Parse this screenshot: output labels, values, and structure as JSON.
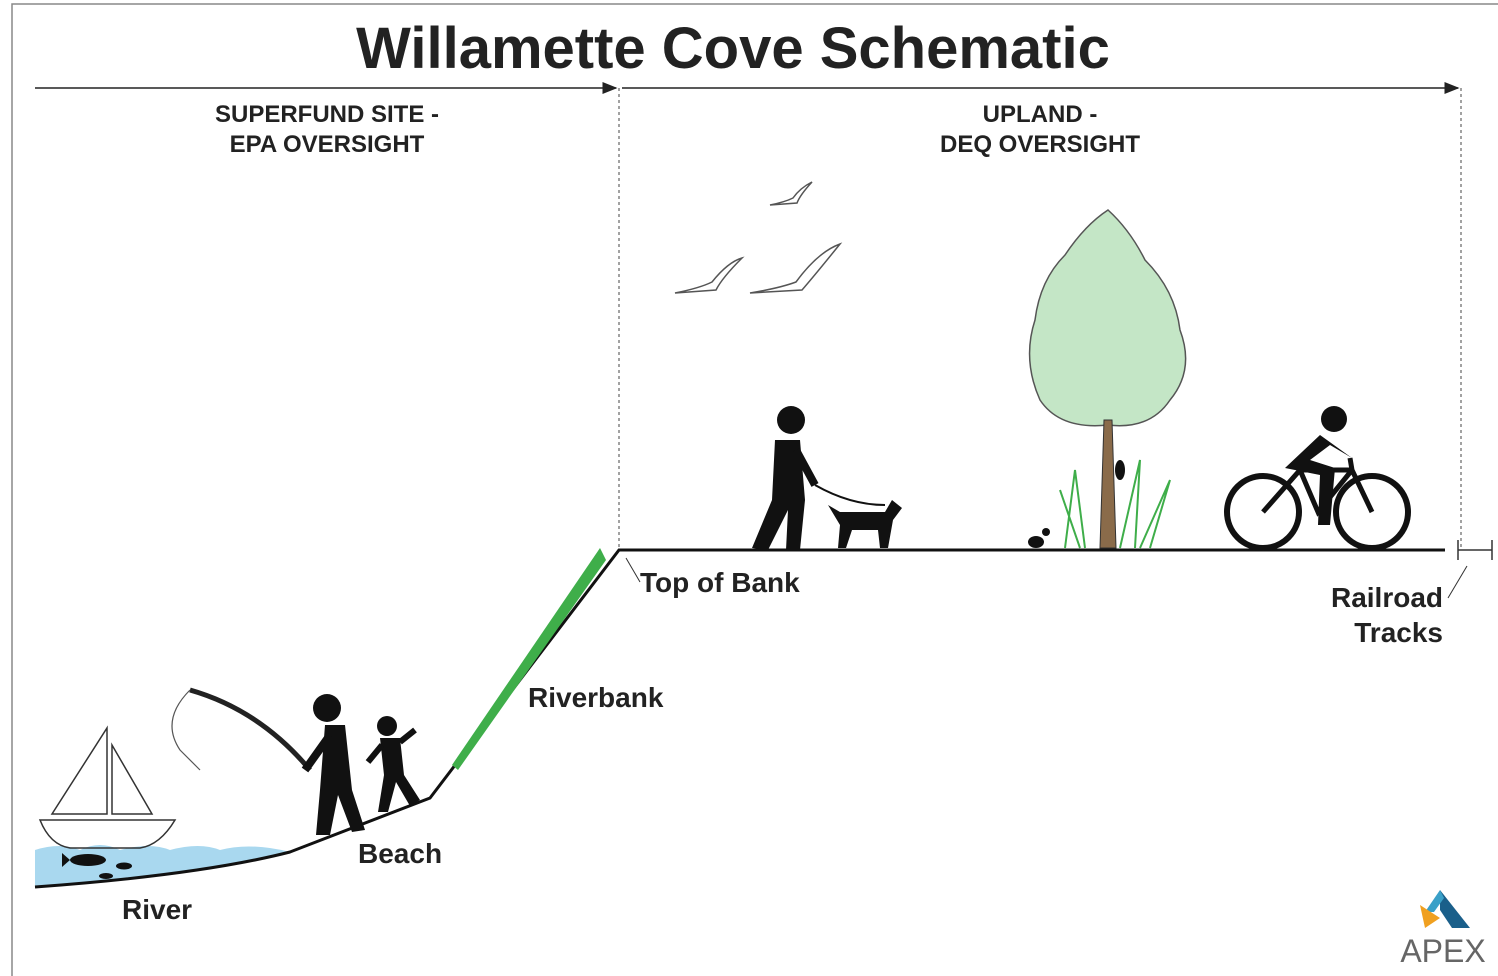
{
  "title": "Willamette Cove Schematic",
  "sections": [
    {
      "label_lines": [
        "SUPERFUND SITE -",
        "EPA OVERSIGHT"
      ]
    },
    {
      "label_lines": [
        "UPLAND -",
        "DEQ OVERSIGHT"
      ]
    }
  ],
  "labels": {
    "top_of_bank": "Top of Bank",
    "railroad_tracks": [
      "Railroad",
      "Tracks"
    ],
    "riverbank": "Riverbank",
    "beach": "Beach",
    "river": "River"
  },
  "logo": "APEX"
}
